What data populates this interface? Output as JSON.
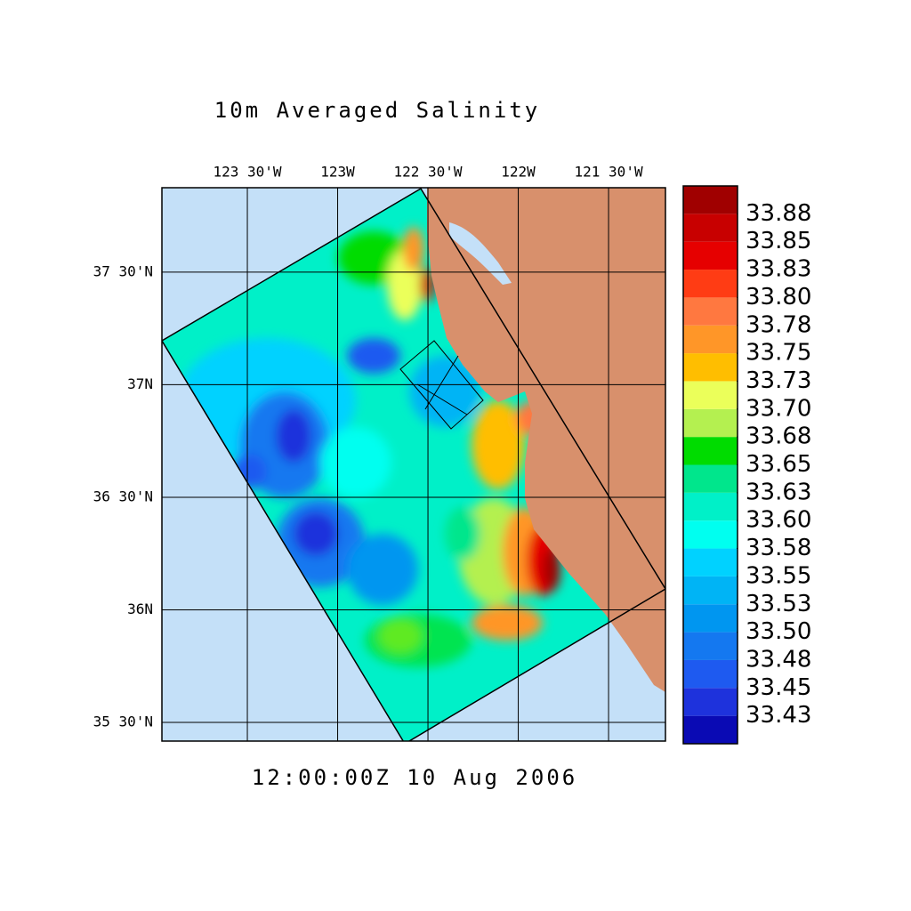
{
  "title": "10m Averaged Salinity",
  "subtitle": "12:00:00Z  10 Aug 2006",
  "map": {
    "xlim": [
      -123.973,
      -121.185
    ],
    "ylim": [
      35.417,
      37.875
    ],
    "xticks": [
      {
        "value": -123.5,
        "label": "123 30'W"
      },
      {
        "value": -123,
        "label": "123W"
      },
      {
        "value": -122.5,
        "label": "122 30'W"
      },
      {
        "value": -122,
        "label": "122W"
      },
      {
        "value": -121.5,
        "label": "121 30'W"
      }
    ],
    "yticks": [
      {
        "value": 37.5,
        "label": "37 30'N"
      },
      {
        "value": 37,
        "label": "37N"
      },
      {
        "value": 36.5,
        "label": "36 30'N"
      },
      {
        "value": 36,
        "label": "36N"
      },
      {
        "value": 35.5,
        "label": "35 30'N"
      }
    ]
  },
  "colorbar": {
    "lim": [
      33.4,
      33.9
    ],
    "colors": [
      "#0a0ab4",
      "#1e32dc",
      "#1e5af0",
      "#1478f0",
      "#0096f0",
      "#00b4f5",
      "#00d2ff",
      "#00fff0",
      "#00f0c8",
      "#00e68c",
      "#00dc00",
      "#b4f050",
      "#ebff5a",
      "#ffbe00",
      "#ff9628",
      "#ff7840",
      "#ff3c14",
      "#e60000",
      "#c80000",
      "#a00000"
    ],
    "levels": [
      {
        "value": 33.425,
        "label": "33.43"
      },
      {
        "value": 33.45,
        "label": "33.45"
      },
      {
        "value": 33.475,
        "label": "33.48"
      },
      {
        "value": 33.5,
        "label": "33.50"
      },
      {
        "value": 33.525,
        "label": "33.53"
      },
      {
        "value": 33.55,
        "label": "33.55"
      },
      {
        "value": 33.575,
        "label": "33.58"
      },
      {
        "value": 33.6,
        "label": "33.60"
      },
      {
        "value": 33.625,
        "label": "33.63"
      },
      {
        "value": 33.65,
        "label": "33.65"
      },
      {
        "value": 33.675,
        "label": "33.68"
      },
      {
        "value": 33.7,
        "label": "33.70"
      },
      {
        "value": 33.725,
        "label": "33.73"
      },
      {
        "value": 33.75,
        "label": "33.75"
      },
      {
        "value": 33.775,
        "label": "33.78"
      },
      {
        "value": 33.8,
        "label": "33.80"
      },
      {
        "value": 33.825,
        "label": "33.83"
      },
      {
        "value": 33.85,
        "label": "33.85"
      },
      {
        "value": 33.875,
        "label": "33.88"
      }
    ]
  }
}
